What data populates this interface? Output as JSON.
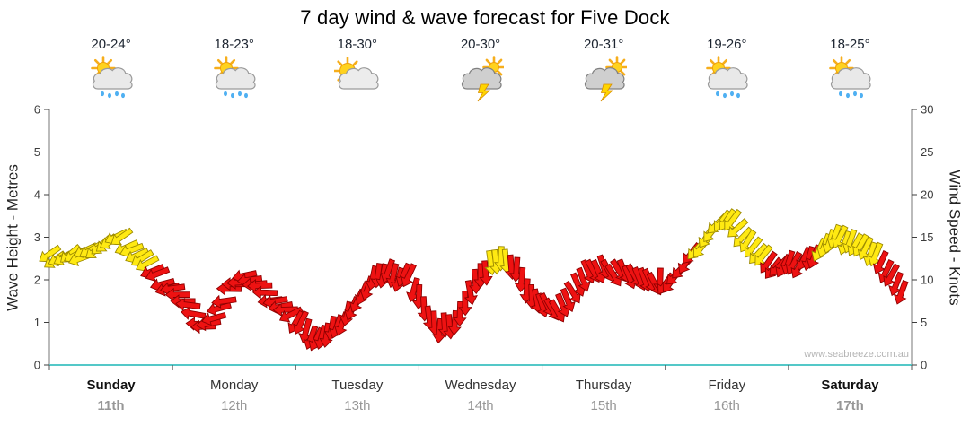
{
  "title": "7 day wind & wave forecast for Five Dock",
  "watermark": "www.seabreeze.com.au",
  "axes": {
    "left": {
      "label": "Wave Height - Metres",
      "ticks": [
        0,
        1,
        2,
        3,
        4,
        5,
        6
      ]
    },
    "right": {
      "label": "Wind Speed - Knots",
      "ticks": [
        0,
        5,
        10,
        15,
        20,
        25,
        30
      ]
    }
  },
  "days": [
    {
      "name": "Sunday",
      "date": "11th",
      "temp": "20-24°",
      "icon": "sun-cloud-rain",
      "weekend": true
    },
    {
      "name": "Monday",
      "date": "12th",
      "temp": "18-23°",
      "icon": "sun-cloud-rain",
      "weekend": false
    },
    {
      "name": "Tuesday",
      "date": "13th",
      "temp": "18-30°",
      "icon": "sun-cloud",
      "weekend": false
    },
    {
      "name": "Wednesday",
      "date": "14th",
      "temp": "20-30°",
      "icon": "storm",
      "weekend": false
    },
    {
      "name": "Thursday",
      "date": "15th",
      "temp": "20-31°",
      "icon": "storm",
      "weekend": false
    },
    {
      "name": "Friday",
      "date": "16th",
      "temp": "19-26°",
      "icon": "sun-cloud-rain",
      "weekend": false
    },
    {
      "name": "Saturday",
      "date": "17th",
      "temp": "18-25°",
      "icon": "sun-cloud-rain",
      "weekend": true
    }
  ],
  "chart_data": {
    "type": "line",
    "title": "7 day wind & wave forecast for Five Dock",
    "categories": [
      "Sunday 11th",
      "Monday 12th",
      "Tuesday 13th",
      "Wednesday 14th",
      "Thursday 15th",
      "Friday 16th",
      "Saturday 17th"
    ],
    "ylabel_left": "Wave Height - Metres",
    "ylabel_right": "Wind Speed - Knots",
    "ylim_left": [
      0,
      6
    ],
    "ylim_right": [
      0,
      30
    ],
    "grid": false,
    "colors": {
      "yellow": "#FFE912",
      "red": "#EE1212",
      "baseline": "#54C8C8"
    },
    "series": [
      {
        "name": "Wind Speed",
        "units": "knots",
        "interval_hours": 2,
        "point_format": [
          "hours_from_start",
          "knots",
          "direction_deg",
          "color_key"
        ],
        "points": [
          [
            0,
            13,
            235,
            "y"
          ],
          [
            2,
            12.5,
            245,
            "y"
          ],
          [
            4,
            13,
            230,
            "y"
          ],
          [
            6,
            12.5,
            250,
            "y"
          ],
          [
            8,
            13.5,
            240,
            "y"
          ],
          [
            10,
            14,
            228,
            "y"
          ],
          [
            12,
            14.5,
            242,
            "y"
          ],
          [
            14,
            15,
            235,
            "y"
          ],
          [
            16,
            13.5,
            250,
            "y"
          ],
          [
            18,
            12.5,
            238,
            "y"
          ],
          [
            20,
            11,
            248,
            "r"
          ],
          [
            22,
            9.5,
            255,
            "r"
          ],
          [
            24,
            9,
            262,
            "r"
          ],
          [
            26,
            7.5,
            270,
            "r"
          ],
          [
            28,
            6,
            280,
            "r"
          ],
          [
            30,
            4.5,
            268,
            "r"
          ],
          [
            32,
            5.5,
            255,
            "r"
          ],
          [
            34,
            7.5,
            262,
            "r"
          ],
          [
            36,
            9.5,
            270,
            "r"
          ],
          [
            38,
            10.5,
            258,
            "r"
          ],
          [
            40,
            9.5,
            265,
            "r"
          ],
          [
            42,
            8.5,
            272,
            "r"
          ],
          [
            44,
            7.5,
            260,
            "r"
          ],
          [
            46,
            6.5,
            268,
            "r"
          ],
          [
            48,
            5,
            210,
            "r"
          ],
          [
            50,
            4,
            195,
            "r"
          ],
          [
            52,
            3,
            205,
            "r"
          ],
          [
            54,
            3.5,
            188,
            "r"
          ],
          [
            56,
            4.5,
            200,
            "r"
          ],
          [
            58,
            6,
            192,
            "r"
          ],
          [
            60,
            7.5,
            205,
            "r"
          ],
          [
            62,
            9,
            198,
            "r"
          ],
          [
            64,
            10.5,
            188,
            "r"
          ],
          [
            66,
            11,
            200,
            "r"
          ],
          [
            68,
            10,
            195,
            "r"
          ],
          [
            70,
            10.5,
            205,
            "r"
          ],
          [
            72,
            8,
            182,
            "r"
          ],
          [
            74,
            5.5,
            172,
            "r"
          ],
          [
            76,
            4,
            185,
            "r"
          ],
          [
            78,
            4.5,
            175,
            "r"
          ],
          [
            80,
            6,
            182,
            "r"
          ],
          [
            82,
            8.5,
            170,
            "r"
          ],
          [
            84,
            10.5,
            180,
            "r"
          ],
          [
            86,
            12,
            172,
            "y"
          ],
          [
            88,
            12.5,
            182,
            "y"
          ],
          [
            90,
            11.5,
            175,
            "r"
          ],
          [
            92,
            10,
            185,
            "r"
          ],
          [
            94,
            8,
            178,
            "r"
          ],
          [
            96,
            7,
            162,
            "r"
          ],
          [
            98,
            6.5,
            150,
            "r"
          ],
          [
            100,
            7,
            158,
            "r"
          ],
          [
            102,
            8.5,
            148,
            "r"
          ],
          [
            104,
            10,
            160,
            "r"
          ],
          [
            106,
            11,
            152,
            "r"
          ],
          [
            108,
            11.5,
            162,
            "r"
          ],
          [
            110,
            10.5,
            148,
            "r"
          ],
          [
            112,
            11,
            158,
            "r"
          ],
          [
            114,
            10.5,
            150,
            "r"
          ],
          [
            116,
            10,
            160,
            "r"
          ],
          [
            118,
            9.5,
            152,
            "r"
          ],
          [
            120,
            9.5,
            215,
            "r"
          ],
          [
            122,
            10.5,
            225,
            "r"
          ],
          [
            124,
            12,
            210,
            "r"
          ],
          [
            126,
            13.5,
            222,
            "y"
          ],
          [
            128,
            15,
            212,
            "y"
          ],
          [
            130,
            16.5,
            225,
            "y"
          ],
          [
            132,
            17,
            215,
            "y"
          ],
          [
            134,
            16,
            228,
            "y"
          ],
          [
            136,
            14.5,
            212,
            "y"
          ],
          [
            138,
            13,
            222,
            "y"
          ],
          [
            140,
            12,
            215,
            "r"
          ],
          [
            142,
            11.5,
            225,
            "r"
          ],
          [
            144,
            12,
            198,
            "r"
          ],
          [
            146,
            11.5,
            208,
            "r"
          ],
          [
            148,
            12.5,
            195,
            "r"
          ],
          [
            150,
            13.5,
            205,
            "y"
          ],
          [
            152,
            14.5,
            198,
            "y"
          ],
          [
            154,
            15,
            208,
            "y"
          ],
          [
            156,
            14.5,
            200,
            "y"
          ],
          [
            158,
            14,
            210,
            "y"
          ],
          [
            160,
            13,
            198,
            "y"
          ],
          [
            162,
            12,
            205,
            "r"
          ],
          [
            164,
            10.5,
            210,
            "r"
          ],
          [
            166,
            8.5,
            200,
            "r"
          ]
        ]
      }
    ]
  }
}
